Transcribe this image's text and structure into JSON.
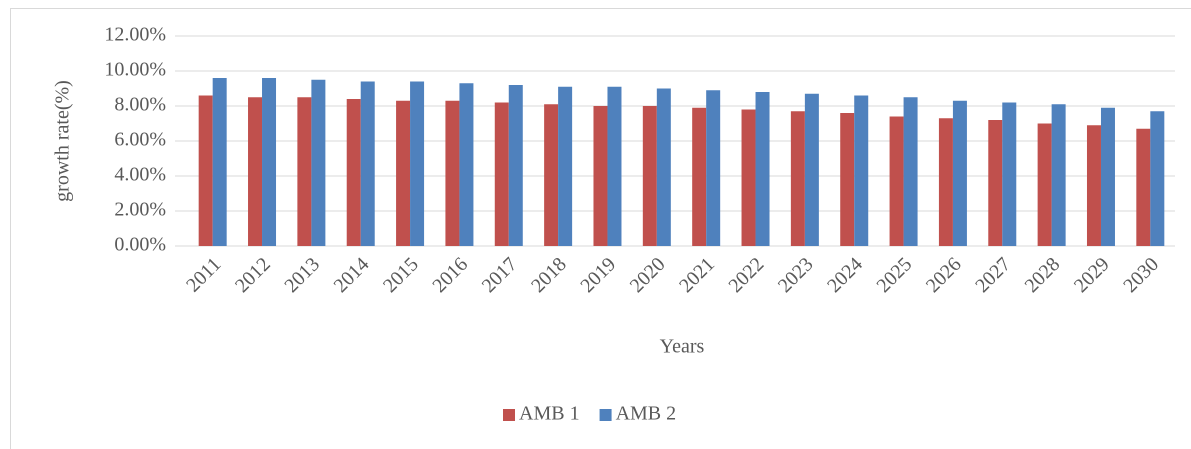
{
  "chart_data": {
    "type": "bar",
    "x_label": "Years",
    "y_label": "growth rate(%)",
    "categories": [
      "2011",
      "2012",
      "2013",
      "2014",
      "2015",
      "2016",
      "2017",
      "2018",
      "2019",
      "2020",
      "2021",
      "2022",
      "2023",
      "2024",
      "2025",
      "2026",
      "2027",
      "2028",
      "2029",
      "2030"
    ],
    "series": [
      {
        "name": "AMB 1",
        "color": "#c0504d",
        "values": [
          8.6,
          8.5,
          8.5,
          8.4,
          8.3,
          8.3,
          8.2,
          8.1,
          8.0,
          8.0,
          7.9,
          7.8,
          7.7,
          7.6,
          7.4,
          7.3,
          7.2,
          7.0,
          6.9,
          6.7
        ]
      },
      {
        "name": "AMB 2",
        "color": "#4f81bd",
        "values": [
          9.6,
          9.6,
          9.5,
          9.4,
          9.4,
          9.3,
          9.2,
          9.1,
          9.1,
          9.0,
          8.9,
          8.8,
          8.7,
          8.6,
          8.5,
          8.3,
          8.2,
          8.1,
          7.9,
          7.7
        ]
      }
    ],
    "ylim": [
      0,
      12
    ],
    "yticks": [
      {
        "value": 0,
        "label": "0.00%"
      },
      {
        "value": 2,
        "label": "2.00%"
      },
      {
        "value": 4,
        "label": "4.00%"
      },
      {
        "value": 6,
        "label": "6.00%"
      },
      {
        "value": 8,
        "label": "8.00%"
      },
      {
        "value": 10,
        "label": "10.00%"
      },
      {
        "value": 12,
        "label": "12.00%"
      }
    ],
    "grid": true,
    "legend": "bottom"
  }
}
